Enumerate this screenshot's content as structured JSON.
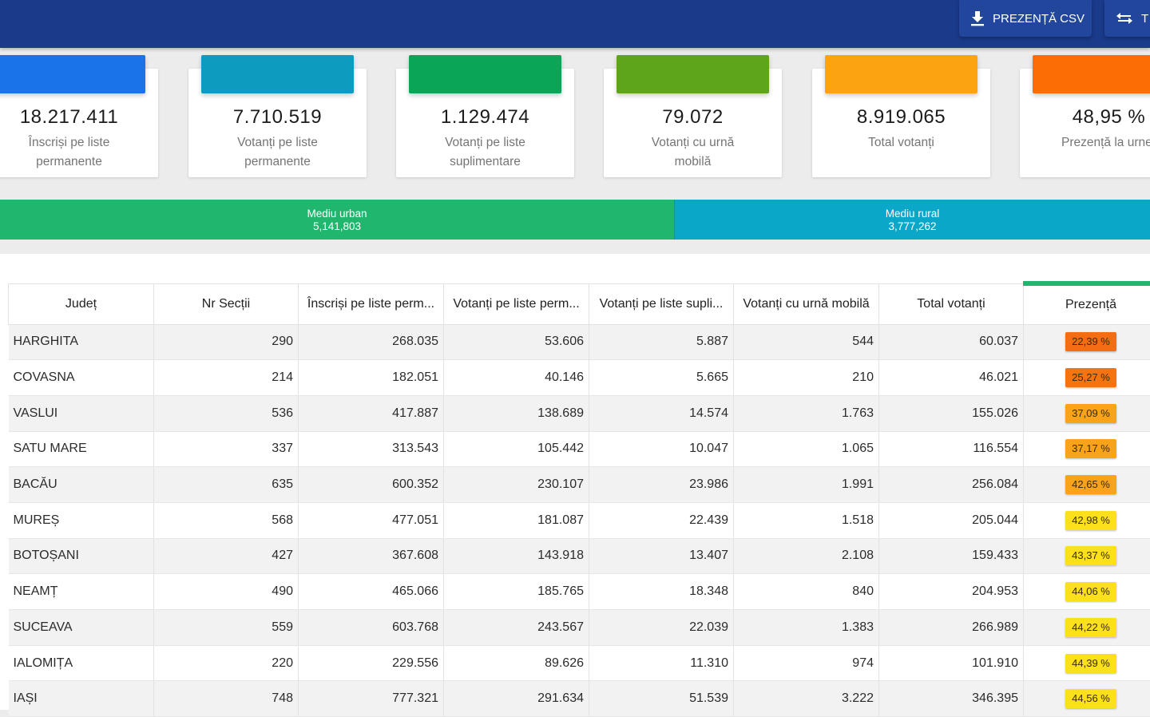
{
  "colors": {
    "topbar": "#1a3a8a",
    "urban": "#21b66e",
    "rural": "#0ba7c9"
  },
  "toolbar": {
    "csv_label": "PREZENȚĂ CSV",
    "csv_icon": "download-icon",
    "swap_label": "T",
    "swap_icon": "swap-arrows-icon"
  },
  "cards": [
    {
      "value": "18.217.411",
      "label_line1": "Înscriși pe liste",
      "label_line2": "permanente",
      "color": "#1a73e8"
    },
    {
      "value": "7.710.519",
      "label_line1": "Votanți pe liste",
      "label_line2": "permanente",
      "color": "#0d9bbf"
    },
    {
      "value": "1.129.474",
      "label_line1": "Votanți pe liste",
      "label_line2": "suplimentare",
      "color": "#0aa556"
    },
    {
      "value": "79.072",
      "label_line1": "Votanți cu urnă",
      "label_line2": "mobilă",
      "color": "#5fa51c"
    },
    {
      "value": "8.919.065",
      "label_line1": "Total votanți",
      "label_line2": "",
      "color": "#fca312"
    },
    {
      "value": "48,95 %",
      "label_line1": "Prezență la urne",
      "label_line2": "",
      "color": "#fd6d05"
    }
  ],
  "environment": {
    "urban_label": "Mediu urban",
    "urban_value": "5,141,803",
    "rural_label": "Mediu rural",
    "rural_value": "3,777,262"
  },
  "table": {
    "headers": [
      "Județ",
      "Nr Secții",
      "Înscriși pe liste perm...",
      "Votanți pe liste perm...",
      "Votanți pe liste supli...",
      "Votanți cu urnă mobilă",
      "Total votanți",
      "Prezență"
    ],
    "rows": [
      {
        "judet": "HARGHITA",
        "sectii": "290",
        "inscrisi": "268.035",
        "perm": "53.606",
        "supl": "5.887",
        "mobila": "544",
        "total": "60.037",
        "prezenta": "22,39 %",
        "color": "#f56d12"
      },
      {
        "judet": "COVASNA",
        "sectii": "214",
        "inscrisi": "182.051",
        "perm": "40.146",
        "supl": "5.665",
        "mobila": "210",
        "total": "46.021",
        "prezenta": "25,27 %",
        "color": "#f6740f"
      },
      {
        "judet": "VASLUI",
        "sectii": "536",
        "inscrisi": "417.887",
        "perm": "138.689",
        "supl": "14.574",
        "mobila": "1.763",
        "total": "155.026",
        "prezenta": "37,09 %",
        "color": "#f9a31a"
      },
      {
        "judet": "SATU MARE",
        "sectii": "337",
        "inscrisi": "313.543",
        "perm": "105.442",
        "supl": "10.047",
        "mobila": "1.065",
        "total": "116.554",
        "prezenta": "37,17 %",
        "color": "#f9a31a"
      },
      {
        "judet": "BACĂU",
        "sectii": "635",
        "inscrisi": "600.352",
        "perm": "230.107",
        "supl": "23.986",
        "mobila": "1.991",
        "total": "256.084",
        "prezenta": "42,65 %",
        "color": "#f9a31a"
      },
      {
        "judet": "MUREȘ",
        "sectii": "568",
        "inscrisi": "477.051",
        "perm": "181.087",
        "supl": "22.439",
        "mobila": "1.518",
        "total": "205.044",
        "prezenta": "42,98 %",
        "color": "#fbe01b"
      },
      {
        "judet": "BOTOȘANI",
        "sectii": "427",
        "inscrisi": "367.608",
        "perm": "143.918",
        "supl": "13.407",
        "mobila": "2.108",
        "total": "159.433",
        "prezenta": "43,37 %",
        "color": "#fbe01b"
      },
      {
        "judet": "NEAMȚ",
        "sectii": "490",
        "inscrisi": "465.066",
        "perm": "185.765",
        "supl": "18.348",
        "mobila": "840",
        "total": "204.953",
        "prezenta": "44,06 %",
        "color": "#fbe01b"
      },
      {
        "judet": "SUCEAVA",
        "sectii": "559",
        "inscrisi": "603.768",
        "perm": "243.567",
        "supl": "22.039",
        "mobila": "1.383",
        "total": "266.989",
        "prezenta": "44,22 %",
        "color": "#fbe01b"
      },
      {
        "judet": "IALOMIȚA",
        "sectii": "220",
        "inscrisi": "229.556",
        "perm": "89.626",
        "supl": "11.310",
        "mobila": "974",
        "total": "101.910",
        "prezenta": "44,39 %",
        "color": "#fbe01b"
      },
      {
        "judet": "IAȘI",
        "sectii": "748",
        "inscrisi": "777.321",
        "perm": "291.634",
        "supl": "51.539",
        "mobila": "3.222",
        "total": "346.395",
        "prezenta": "44,56 %",
        "color": "#fbe01b"
      }
    ]
  }
}
